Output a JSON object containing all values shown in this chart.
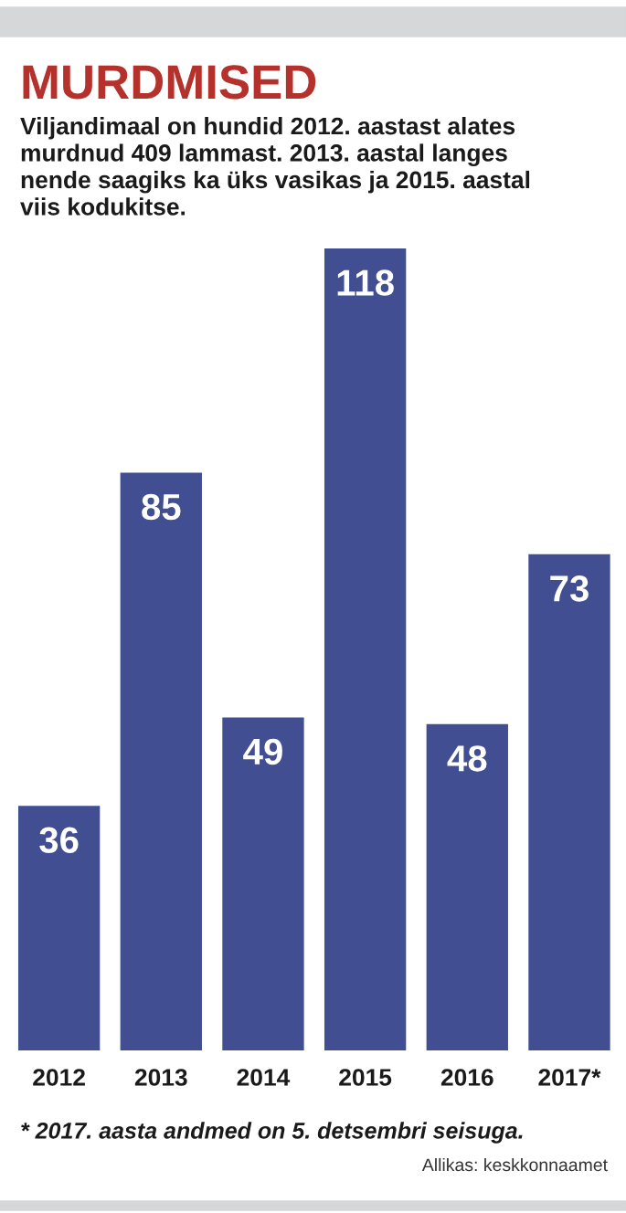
{
  "chart_data": {
    "type": "bar",
    "title": "MURDMISED",
    "subtitle": "Viljandimaal on hundid 2012. aastast alates\nmurdnud 409 lammast. 2013. aastal langes\nnende saagiks ka üks vasikas ja 2015. aastal\nviis kodukitse.",
    "categories": [
      "2012",
      "2013",
      "2014",
      "2015",
      "2016",
      "2017*"
    ],
    "values": [
      36,
      85,
      49,
      118,
      48,
      73
    ],
    "color": "#414e91",
    "data_labels": true,
    "relative": false,
    "grid": false,
    "tick_labels": "x",
    "annotations": [
      "* 2017. aasta andmed on 5. detsembri seisuga.",
      "Allikas: keskkonnaamet"
    ]
  }
}
